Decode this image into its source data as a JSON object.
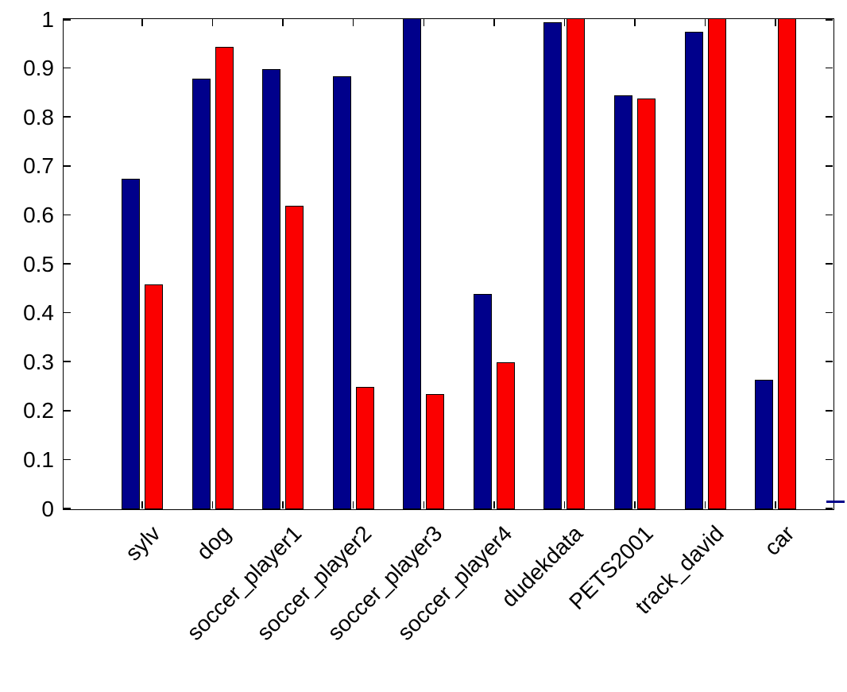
{
  "chart_data": {
    "type": "bar",
    "title": "",
    "xlabel": "",
    "ylabel": "",
    "categories": [
      "sylv",
      "dog",
      "soccer_player1",
      "soccer_player2",
      "soccer_player3",
      "soccer_player4",
      "dudekdata",
      "PETS2001",
      "track_david",
      "car"
    ],
    "series": [
      {
        "name": "series-blue",
        "color": "#00008B",
        "values": [
          0.675,
          0.88,
          0.9,
          0.885,
          1.0,
          0.44,
          0.995,
          0.845,
          0.975,
          0.265
        ]
      },
      {
        "name": "series-red",
        "color": "#FB0000",
        "values": [
          0.46,
          0.945,
          0.62,
          0.25,
          0.235,
          0.3,
          1.0,
          0.84,
          1.0,
          1.0
        ]
      }
    ],
    "ylim": [
      0,
      1
    ],
    "yticks": [
      0,
      0.1,
      0.2,
      0.3,
      0.4,
      0.5,
      0.6,
      0.7,
      0.8,
      0.9,
      1
    ],
    "ytick_labels": [
      "0",
      "0.1",
      "0.2",
      "0.3",
      "0.4",
      "0.5",
      "0.6",
      "0.7",
      "0.8",
      "0.9",
      "1"
    ],
    "grid": false,
    "legend": "none",
    "box": true,
    "axis_color": "#000000",
    "background_color": "#FFFFFF",
    "stray_mark_color": "#00008B"
  }
}
